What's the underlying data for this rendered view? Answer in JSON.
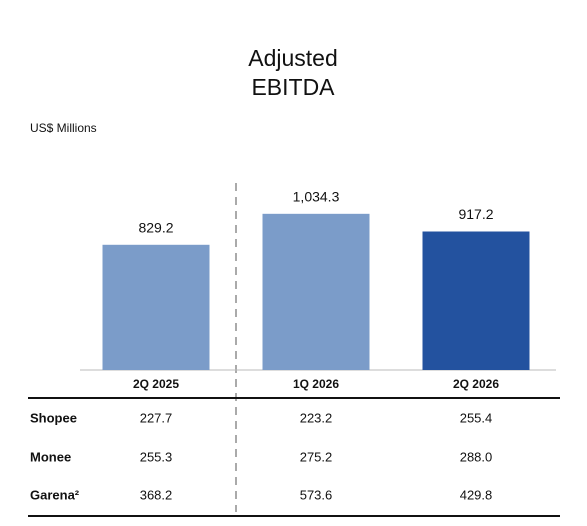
{
  "chart_data": {
    "type": "bar",
    "title": "Adjusted EBITDA",
    "subtitle": "US$ Millions",
    "categories": [
      "2Q 2025",
      "1Q 2026",
      "2Q 2026"
    ],
    "values": [
      829.2,
      1034.3,
      917.2
    ],
    "value_labels": [
      "829.2",
      "1,034.3",
      "917.2"
    ],
    "colors": [
      "#7b9cc9",
      "#7b9cc9",
      "#23529f"
    ]
  },
  "table": {
    "rows": [
      [
        "Shopee",
        "227.7",
        "223.2",
        "255.4"
      ],
      [
        "Monee",
        "255.3",
        "275.2",
        "288.0"
      ],
      [
        "Garena²",
        "368.2",
        "573.6",
        "429.8"
      ]
    ]
  }
}
